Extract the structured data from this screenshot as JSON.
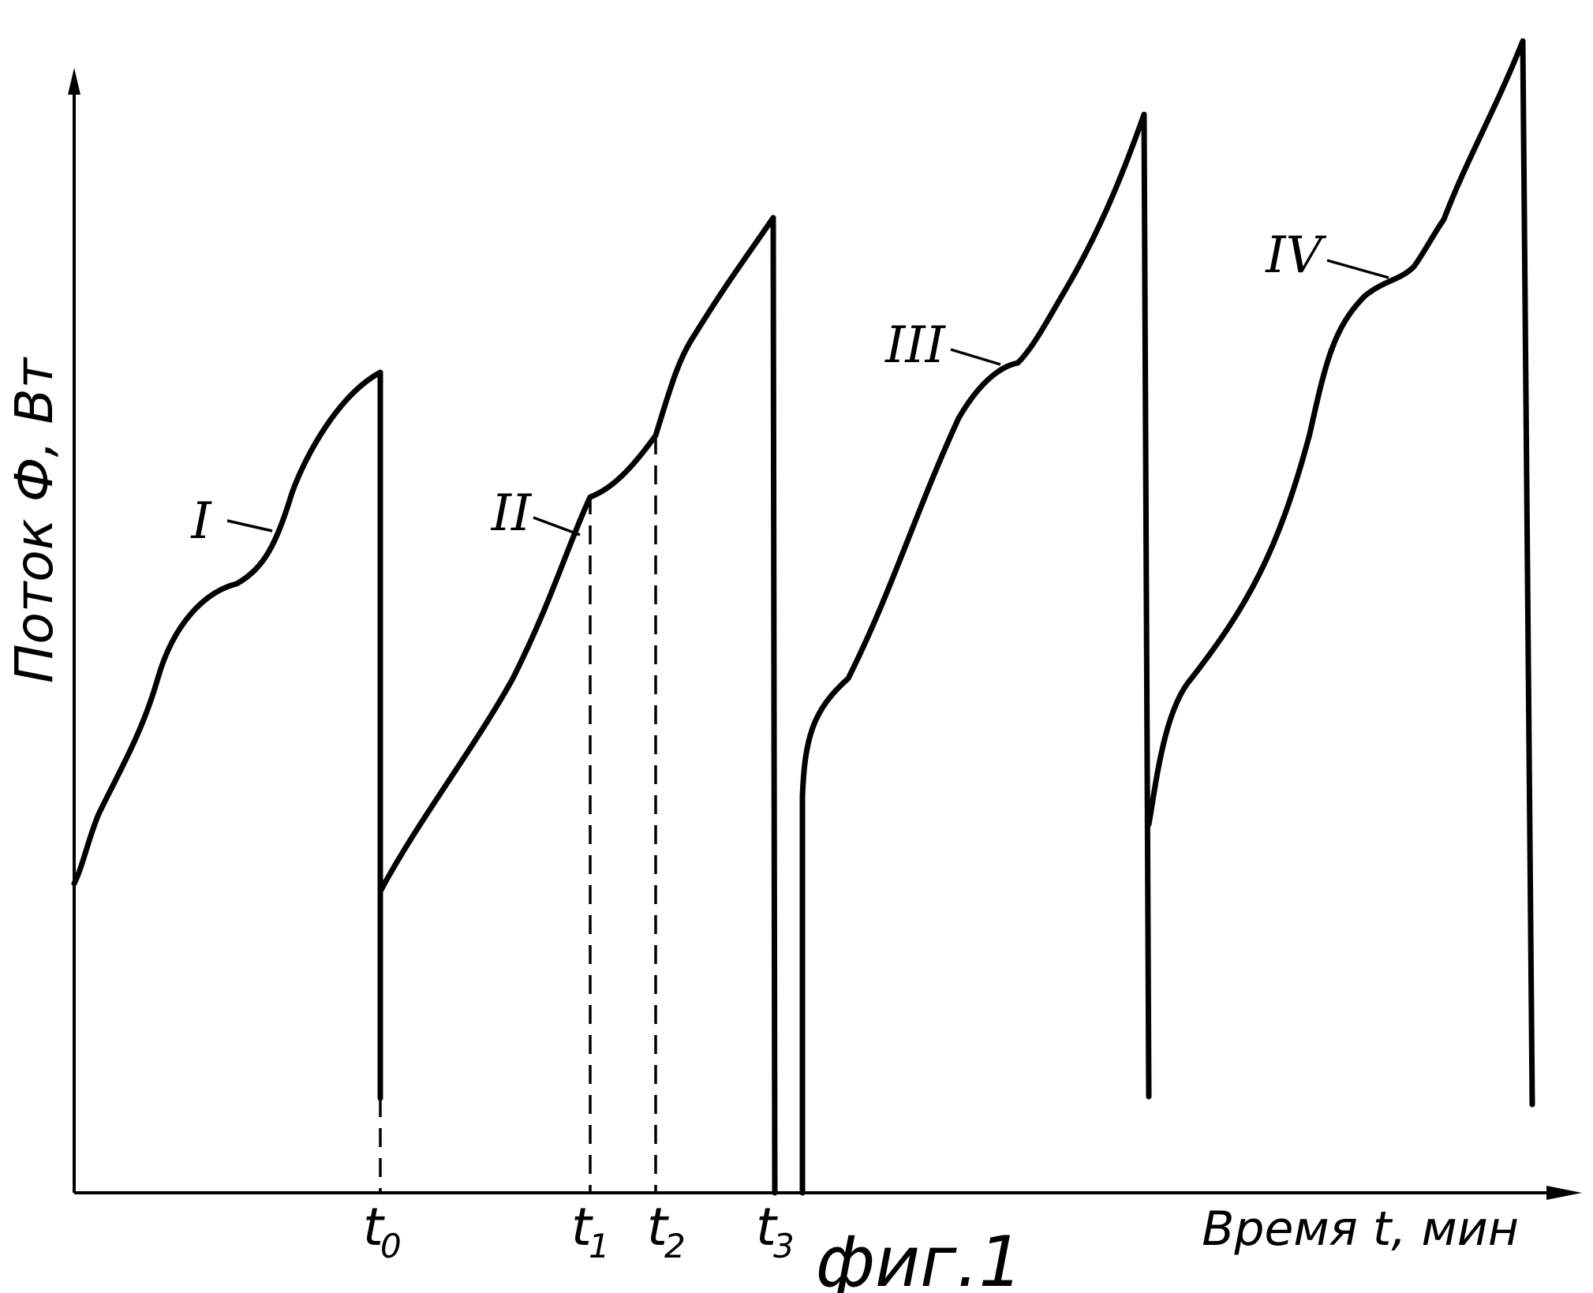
{
  "chart_data": {
    "type": "line",
    "title": "",
    "xlabel": "Время t, мин",
    "ylabel": "Поток Ф, Вт",
    "grid": false,
    "figure_caption": "фиг.1",
    "x_markers": [
      {
        "label": "t",
        "sub": "0"
      },
      {
        "label": "t",
        "sub": "1"
      },
      {
        "label": "t",
        "sub": "2"
      },
      {
        "label": "t",
        "sub": "3"
      }
    ],
    "series_labels": [
      "I",
      "II",
      "III",
      "IV"
    ],
    "series": [
      {
        "name": "I",
        "label_index": 0
      },
      {
        "name": "II",
        "label_index": 1
      },
      {
        "name": "III",
        "label_index": 2
      },
      {
        "name": "IV",
        "label_index": 3
      }
    ]
  }
}
